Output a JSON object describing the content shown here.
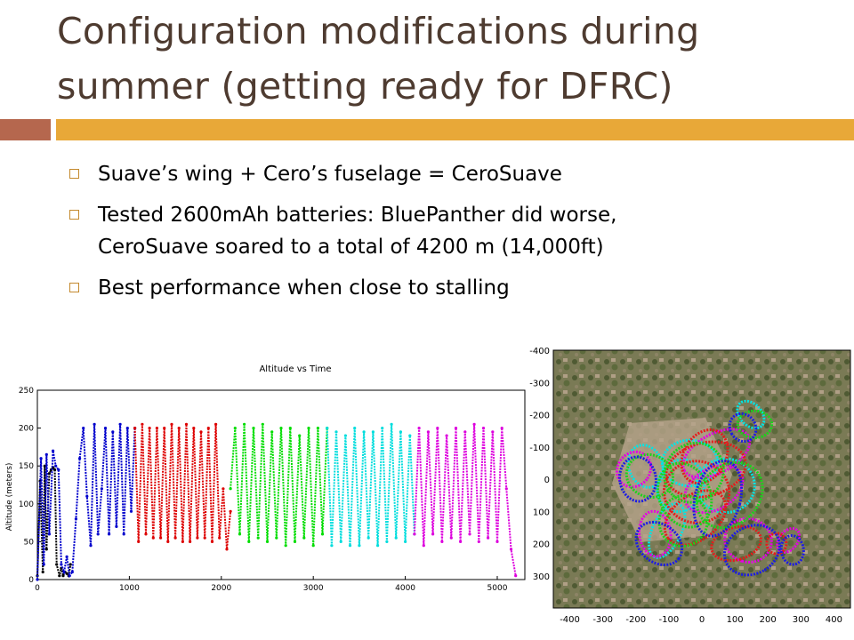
{
  "slide": {
    "title_line1": "Configuration modifications during",
    "title_line2": "summer (getting ready for DFRC)",
    "accent_colors": {
      "left_bar": "#b5674e",
      "right_bar": "#e8a838",
      "bullet_box": "#c48a2e",
      "title": "#4e3b30"
    },
    "bullets": [
      {
        "lines": [
          "Suave’s wing + Cero’s fuselage = CeroSuave"
        ]
      },
      {
        "lines": [
          "Tested 2600mAh batteries: BluePanther did worse,",
          "CeroSuave soared to a total of 4200 m (14,000ft)"
        ]
      },
      {
        "lines": [
          "Best performance when close to stalling"
        ]
      }
    ]
  },
  "chart_data": [
    {
      "type": "line",
      "title": "Altitude vs Time",
      "xlabel": "",
      "ylabel": "Altitude (meters)",
      "xlim": [
        0,
        5300
      ],
      "ylim": [
        0,
        250
      ],
      "x_ticks": [
        "0",
        "1000",
        "2000",
        "3000",
        "4000",
        "5000"
      ],
      "y_ticks": [
        "0",
        "50",
        "100",
        "150",
        "200",
        "250"
      ],
      "grid": false,
      "series": [
        {
          "color": "#000000",
          "x": [
            0,
            30,
            60,
            80,
            100,
            130,
            150,
            170,
            190,
            210,
            240,
            260,
            280,
            300,
            320,
            340,
            360
          ],
          "y": [
            5,
            130,
            10,
            150,
            40,
            140,
            145,
            148,
            145,
            20,
            5,
            15,
            5,
            10,
            8,
            5,
            20
          ]
        },
        {
          "color": "#0000cc",
          "x": [
            0,
            40,
            70,
            100,
            130,
            170,
            200,
            230,
            260,
            290,
            320,
            350,
            380,
            420,
            460,
            500,
            540,
            580,
            620,
            660,
            700,
            740,
            780,
            820,
            860,
            900,
            940,
            980,
            1020,
            1060
          ],
          "y": [
            0,
            160,
            20,
            165,
            60,
            170,
            150,
            145,
            20,
            10,
            30,
            5,
            10,
            80,
            160,
            200,
            110,
            45,
            205,
            60,
            120,
            200,
            60,
            195,
            70,
            205,
            60,
            200,
            90,
            200
          ]
        },
        {
          "color": "#dd0000",
          "x": [
            1060,
            1100,
            1140,
            1180,
            1220,
            1260,
            1300,
            1340,
            1380,
            1420,
            1460,
            1500,
            1540,
            1580,
            1620,
            1660,
            1700,
            1740,
            1780,
            1820,
            1860,
            1900,
            1940,
            1980,
            2020,
            2060,
            2100
          ],
          "y": [
            200,
            50,
            205,
            60,
            200,
            55,
            200,
            55,
            200,
            50,
            205,
            55,
            200,
            50,
            205,
            50,
            200,
            55,
            195,
            55,
            200,
            50,
            205,
            55,
            120,
            40,
            90
          ]
        },
        {
          "color": "#00dd00",
          "x": [
            2100,
            2150,
            2200,
            2250,
            2300,
            2350,
            2400,
            2450,
            2500,
            2550,
            2600,
            2650,
            2700,
            2750,
            2800,
            2850,
            2900,
            2950,
            3000,
            3050,
            3100,
            3150
          ],
          "y": [
            120,
            200,
            60,
            205,
            50,
            200,
            55,
            205,
            50,
            195,
            55,
            200,
            45,
            200,
            50,
            190,
            55,
            200,
            45,
            200,
            60,
            200
          ]
        },
        {
          "color": "#00dddd",
          "x": [
            3150,
            3200,
            3250,
            3300,
            3350,
            3400,
            3450,
            3500,
            3550,
            3600,
            3650,
            3700,
            3750,
            3800,
            3850,
            3900,
            3950,
            4000,
            4050,
            4100
          ],
          "y": [
            200,
            45,
            195,
            50,
            190,
            45,
            200,
            45,
            195,
            55,
            195,
            45,
            200,
            50,
            205,
            55,
            195,
            50,
            190,
            60
          ]
        },
        {
          "color": "#dd00dd",
          "x": [
            4100,
            4150,
            4200,
            4250,
            4300,
            4350,
            4400,
            4450,
            4500,
            4550,
            4600,
            4650,
            4700,
            4750,
            4800,
            4850,
            4900,
            4950,
            5000,
            5050,
            5100,
            5150,
            5200
          ],
          "y": [
            60,
            200,
            45,
            195,
            60,
            200,
            50,
            190,
            55,
            200,
            50,
            195,
            60,
            205,
            50,
            200,
            55,
            195,
            50,
            200,
            120,
            40,
            5
          ]
        }
      ]
    },
    {
      "type": "scatter",
      "title": "",
      "xlim": [
        -450,
        450
      ],
      "ylim": [
        -400,
        400
      ],
      "x_ticks": [
        "-400",
        "-300",
        "-200",
        "-100",
        "0",
        "100",
        "200",
        "300",
        "400"
      ],
      "y_ticks": [
        "-400",
        "-300",
        "-200",
        "-100",
        "0",
        "100",
        "200",
        "300"
      ],
      "background": "satellite image",
      "series": [
        {
          "color": "#00e5e5"
        },
        {
          "color": "#e500e5"
        },
        {
          "color": "#e51b1b"
        },
        {
          "color": "#1bd31b"
        },
        {
          "color": "#1b1be5"
        }
      ]
    }
  ]
}
